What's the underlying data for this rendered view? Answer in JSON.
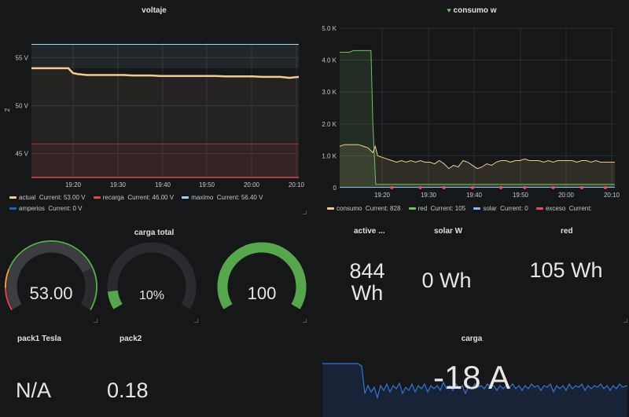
{
  "voltaje": {
    "title": "voltaje",
    "yaxis_label": "2",
    "chart_data": {
      "type": "line",
      "x_ticks": [
        "19:20",
        "19:30",
        "19:40",
        "19:50",
        "20:00",
        "20:10"
      ],
      "y_ticks": [
        "45 V",
        "50 V",
        "55 V"
      ],
      "ylim": [
        42.5,
        56.6
      ],
      "x_time": [
        0,
        2,
        4,
        6,
        8,
        9,
        10,
        12,
        14,
        16,
        18,
        20,
        22,
        24,
        26,
        28,
        30,
        32,
        34,
        36,
        38,
        40,
        42,
        44,
        46,
        48,
        50,
        52,
        54,
        56,
        58
      ],
      "series": [
        {
          "name": "actual",
          "color": "#f2cc8f",
          "values": [
            53.9,
            53.9,
            53.9,
            53.9,
            53.9,
            53.4,
            53.3,
            53.2,
            53.2,
            53.2,
            53.2,
            53.2,
            53.15,
            53.15,
            53.15,
            53.1,
            53.1,
            53.1,
            53.1,
            53.1,
            53.1,
            53.1,
            53.05,
            53.05,
            53.05,
            53.05,
            53.0,
            53.0,
            53.0,
            52.9,
            53.0
          ]
        },
        {
          "name": "recarga",
          "color": "#e0464e",
          "constant": 46.0
        },
        {
          "name": "maximo",
          "color": "#a5d4f5",
          "constant": 56.4
        },
        {
          "name": "amperios",
          "color": "#1f60c4",
          "constant": 0
        }
      ]
    },
    "legend": [
      {
        "name": "actual",
        "label": "Current: 53.00 V",
        "color": "#f2cc8f"
      },
      {
        "name": "recarga",
        "label": "Current: 46.00 V",
        "color": "#e0464e"
      },
      {
        "name": "maximo",
        "label": "Current: 56.40 V",
        "color": "#a5d4f5"
      },
      {
        "name": "amperios",
        "label": "Current: 0 V",
        "color": "#1f60c4"
      }
    ]
  },
  "consumo": {
    "title": "consumo w",
    "chart_data": {
      "type": "line",
      "x_ticks": [
        "19:20",
        "19:30",
        "19:40",
        "19:50",
        "20:00",
        "20:10"
      ],
      "y_ticks": [
        "0",
        "1.0 K",
        "2.0 K",
        "3.0 K",
        "4.0 K",
        "5.0 K"
      ],
      "ylim": [
        0,
        5000
      ],
      "series": [
        {
          "name": "consumo",
          "color": "#f2cc8f",
          "x": [
            0,
            1,
            2,
            3,
            4,
            5,
            6,
            7,
            7.5,
            8,
            9,
            10,
            11,
            12,
            13,
            14,
            15,
            16,
            17,
            18,
            19,
            20,
            21,
            22,
            23,
            24,
            25,
            26,
            27,
            28,
            29,
            30,
            31,
            32,
            33,
            34,
            35,
            36,
            37,
            38,
            39,
            40,
            41,
            42,
            43,
            44,
            45,
            46,
            47,
            48,
            49,
            50,
            51,
            52,
            53,
            54,
            55,
            56,
            57,
            58
          ],
          "values": [
            1300,
            1350,
            1350,
            1350,
            1350,
            1300,
            1250,
            1100,
            1300,
            1000,
            950,
            900,
            850,
            800,
            850,
            800,
            850,
            800,
            850,
            800,
            800,
            750,
            850,
            750,
            600,
            700,
            650,
            850,
            800,
            700,
            600,
            650,
            750,
            700,
            800,
            850,
            850,
            800,
            850,
            850,
            900,
            850,
            850,
            850,
            800,
            850,
            800,
            850,
            850,
            850,
            850,
            800,
            850,
            850,
            800,
            850,
            800,
            800,
            800,
            800
          ]
        },
        {
          "name": "red",
          "color": "#73bf69",
          "x": [
            0,
            1,
            2,
            3,
            4,
            5,
            6,
            6.6,
            7,
            7.6,
            10,
            20,
            30,
            40,
            50,
            58
          ],
          "values": [
            4250,
            4250,
            4250,
            4300,
            4300,
            4300,
            4300,
            4300,
            2000,
            105,
            105,
            105,
            105,
            105,
            105,
            105
          ]
        },
        {
          "name": "solar",
          "color": "#8ab8ff",
          "x": [
            0,
            58
          ],
          "values": [
            0,
            0
          ]
        },
        {
          "name": "exceso",
          "color": "#f2495c",
          "points_x": [
            11,
            17,
            22,
            28,
            34,
            39,
            45,
            51,
            56
          ],
          "value": 0
        }
      ]
    },
    "legend": [
      {
        "name": "consumo",
        "label": "Current: 828",
        "color": "#f2cc8f"
      },
      {
        "name": "red",
        "label": "Current: 105",
        "color": "#73bf69"
      },
      {
        "name": "solar",
        "label": "Current: 0",
        "color": "#8ab8ff"
      },
      {
        "name": "exceso",
        "label": "Current:",
        "color": "#f2495c"
      }
    ]
  },
  "carga_total": {
    "title": "carga total",
    "gauges": [
      {
        "value": "53.00",
        "fraction": 0.77,
        "color": "#3a3a3a",
        "thresholds": true
      },
      {
        "value": "10%",
        "fraction": 0.1,
        "color": "#56a64b",
        "thresholds": false
      },
      {
        "value": "100",
        "fraction": 1.0,
        "color": "#56a64b",
        "thresholds": false
      }
    ]
  },
  "stats": {
    "active_title": "active ...",
    "active_value_1": "844",
    "active_value_2": "Wh",
    "solar_title": "solar W",
    "solar_value": "0 Wh",
    "red_title": "red",
    "red_value": "105 Wh",
    "pack1_title": "pack1 Tesla",
    "pack1_value": "N/A",
    "pack2_title": "pack2",
    "pack2_value": "0.18",
    "carga_title": "carga",
    "carga_value": "-18 A"
  },
  "colors": {
    "bg": "#161719",
    "grid": "#2c2d30",
    "text": "#d8d9da"
  }
}
